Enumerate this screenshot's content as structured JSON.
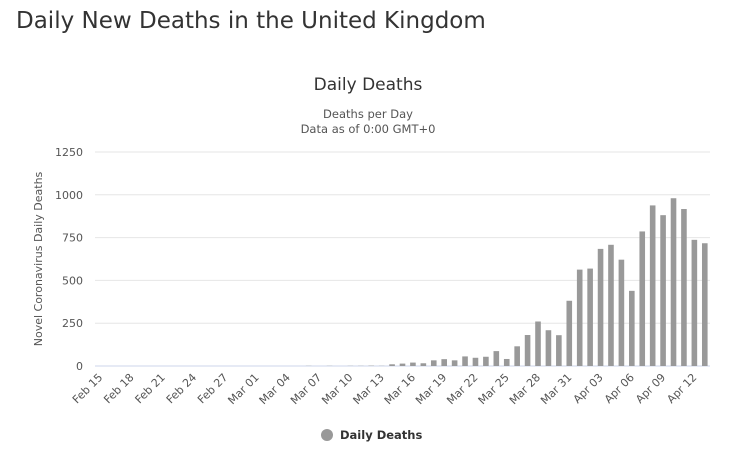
{
  "page_title": "Daily New Deaths in the United Kingdom",
  "chart_data": {
    "type": "bar",
    "title": "Daily Deaths",
    "subtitle_line1": "Deaths per Day",
    "subtitle_line2": "Data as of 0:00 GMT+0",
    "xlabel": "",
    "ylabel": "Novel Coronavirus Daily Deaths",
    "ylim": [
      0,
      1250
    ],
    "yticks": [
      "0",
      "250",
      "500",
      "750",
      "1000",
      "1250"
    ],
    "grid": true,
    "legend": {
      "position": "bottom-center",
      "label": "Daily Deaths"
    },
    "color": "#999999",
    "categories": [
      "Feb 15",
      "Feb 16",
      "Feb 17",
      "Feb 18",
      "Feb 19",
      "Feb 20",
      "Feb 21",
      "Feb 22",
      "Feb 23",
      "Feb 24",
      "Feb 25",
      "Feb 26",
      "Feb 27",
      "Feb 28",
      "Feb 29",
      "Mar 01",
      "Mar 02",
      "Mar 03",
      "Mar 04",
      "Mar 05",
      "Mar 06",
      "Mar 07",
      "Mar 08",
      "Mar 09",
      "Mar 10",
      "Mar 11",
      "Mar 12",
      "Mar 13",
      "Mar 14",
      "Mar 15",
      "Mar 16",
      "Mar 17",
      "Mar 18",
      "Mar 19",
      "Mar 20",
      "Mar 21",
      "Mar 22",
      "Mar 23",
      "Mar 24",
      "Mar 25",
      "Mar 26",
      "Mar 27",
      "Mar 28",
      "Mar 29",
      "Mar 30",
      "Mar 31",
      "Apr 01",
      "Apr 02",
      "Apr 03",
      "Apr 04",
      "Apr 05",
      "Apr 06",
      "Apr 07",
      "Apr 08",
      "Apr 09",
      "Apr 10",
      "Apr 11",
      "Apr 12",
      "Apr 13"
    ],
    "tick_labels": [
      "Feb 15",
      "Feb 18",
      "Feb 21",
      "Feb 24",
      "Feb 27",
      "Mar 01",
      "Mar 04",
      "Mar 07",
      "Mar 10",
      "Mar 13",
      "Mar 16",
      "Mar 19",
      "Mar 22",
      "Mar 25",
      "Mar 28",
      "Mar 31",
      "Apr 03",
      "Apr 06",
      "Apr 09",
      "Apr 12"
    ],
    "values": [
      0,
      0,
      0,
      0,
      0,
      0,
      0,
      0,
      0,
      0,
      0,
      0,
      0,
      0,
      0,
      0,
      0,
      0,
      0,
      0,
      1,
      0,
      1,
      0,
      1,
      1,
      2,
      1,
      10,
      14,
      20,
      16,
      33,
      40,
      33,
      56,
      48,
      54,
      87,
      41,
      115,
      181,
      260,
      209,
      180,
      381,
      563,
      569,
      684,
      708,
      621,
      439,
      786,
      938,
      881,
      980,
      917,
      737,
      717
    ]
  }
}
